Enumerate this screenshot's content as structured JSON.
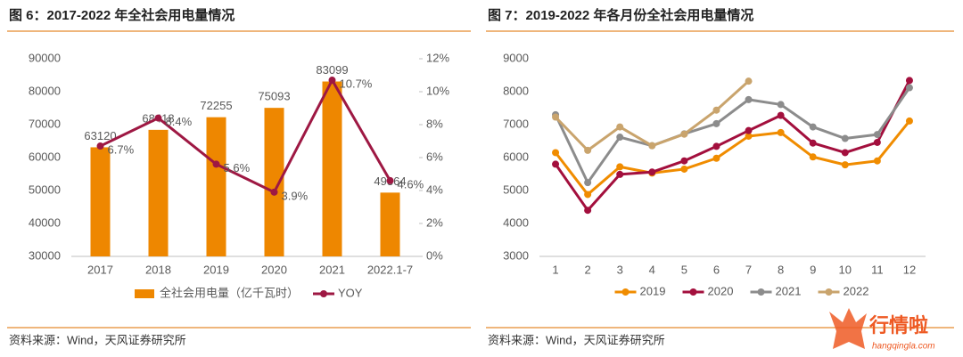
{
  "chart_data": [
    {
      "type": "bar",
      "title": "图 6：2017-2022 年全社会用电量情况",
      "categories": [
        "2017",
        "2018",
        "2019",
        "2020",
        "2021",
        "2022.1-7"
      ],
      "series": [
        {
          "name": "全社会用电量（亿千瓦时）",
          "color": "#ee8700",
          "values": [
            63120,
            68418,
            72255,
            75093,
            83099,
            49364
          ]
        },
        {
          "name": "YOY",
          "color": "#9e1843",
          "axis": "y2",
          "values": [
            6.7,
            8.4,
            5.6,
            3.9,
            10.7,
            4.6
          ],
          "value_labels": [
            "6.7%",
            "8.4%",
            "5.6%",
            "3.9%",
            "10.7%",
            "4.6%"
          ]
        }
      ],
      "ylim": [
        30000,
        90000
      ],
      "yticks": [
        30000,
        40000,
        50000,
        60000,
        70000,
        80000,
        90000
      ],
      "y2lim": [
        0,
        12
      ],
      "y2ticks": [
        {
          "value": 0,
          "label": "0%"
        },
        {
          "value": 2,
          "label": "2%"
        },
        {
          "value": 4,
          "label": "4%"
        },
        {
          "value": 6,
          "label": "6%"
        },
        {
          "value": 8,
          "label": "8%"
        },
        {
          "value": 10,
          "label": "10%"
        },
        {
          "value": 12,
          "label": "12%"
        }
      ],
      "grid": false,
      "legend": "bottom",
      "source": "资料来源：Wind，天风证券研究所"
    },
    {
      "type": "line",
      "title": "图 7：2019-2022 年各月份全社会用电量情况",
      "categories": [
        "1",
        "2",
        "3",
        "4",
        "5",
        "6",
        "7",
        "8",
        "9",
        "10",
        "11",
        "12"
      ],
      "series": [
        {
          "name": "2019",
          "color": "#f08c00",
          "values": [
            6150,
            4880,
            5720,
            5530,
            5650,
            5980,
            6650,
            6760,
            6020,
            5780,
            5900,
            7110
          ]
        },
        {
          "name": "2020",
          "color": "#a30f3d",
          "values": [
            5800,
            4400,
            5490,
            5560,
            5900,
            6340,
            6820,
            7280,
            6440,
            6150,
            6460,
            8340
          ]
        },
        {
          "name": "2021",
          "color": "#8c8c8c",
          "values": [
            7300,
            5240,
            6620,
            6360,
            6720,
            7030,
            7760,
            7610,
            6930,
            6580,
            6700,
            8120
          ]
        },
        {
          "name": "2022",
          "color": "#c9a46d",
          "values": [
            7230,
            6220,
            6930,
            6360,
            6710,
            7440,
            8320,
            null,
            null,
            null,
            null,
            null
          ]
        }
      ],
      "ylim": [
        3000,
        9000
      ],
      "yticks": [
        3000,
        4000,
        5000,
        6000,
        7000,
        8000,
        9000
      ],
      "grid": false,
      "legend": "bottom",
      "source": "资料来源：Wind，天风证券研究所"
    }
  ],
  "watermark": {
    "text": "行情啦",
    "url": "hangqingla.com"
  }
}
